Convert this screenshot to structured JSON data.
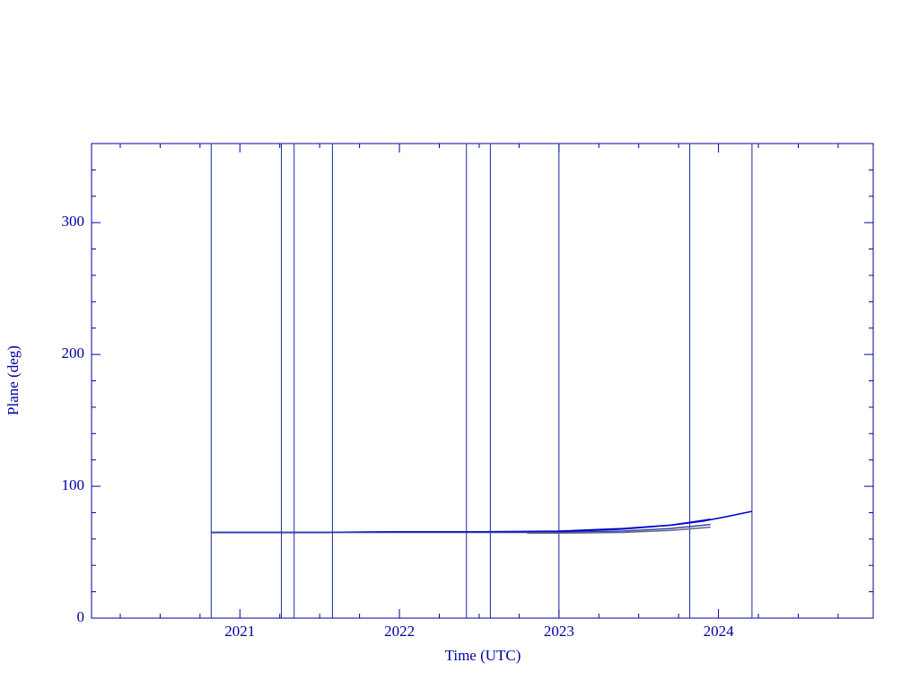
{
  "chart_data": {
    "type": "line",
    "xlabel": "Time (UTC)",
    "ylabel": "Plane (deg)",
    "xlim": [
      2020.07,
      2024.97
    ],
    "ylim": [
      0,
      360
    ],
    "xticks": [
      2021,
      2022,
      2023,
      2024
    ],
    "yticks": [
      0,
      100,
      200,
      300
    ],
    "xminorticks": [
      2020.25,
      2020.5,
      2020.75,
      2021.25,
      2021.5,
      2021.75,
      2022.25,
      2022.5,
      2022.75,
      2023.25,
      2023.5,
      2023.75,
      2024.25,
      2024.5,
      2024.75
    ],
    "yminorticks": [
      20,
      40,
      60,
      80,
      120,
      140,
      160,
      180,
      220,
      240,
      260,
      280,
      320,
      340
    ],
    "axis_color": "#0000a0",
    "event_lines": {
      "color": "#1a2aa0",
      "x": [
        2020.82,
        2021.26,
        2021.34,
        2021.58,
        2022.42,
        2022.57,
        2023.0,
        2023.82,
        2024.21
      ]
    },
    "series": [
      {
        "color": "#0000cc",
        "x": [
          2020.82,
          2021.5,
          2022.0,
          2022.5,
          2023.0,
          2023.4,
          2023.7,
          2023.9,
          2024.05,
          2024.21
        ],
        "values": [
          65,
          65,
          65.5,
          65.5,
          66,
          68,
          70.5,
          73.5,
          77,
          81
        ]
      },
      {
        "color": "#0000cc",
        "x": [
          2020.82,
          2021.5,
          2022.0,
          2022.5,
          2023.0,
          2023.4,
          2023.7,
          2023.95
        ],
        "values": [
          65,
          65,
          65.5,
          65.5,
          65.5,
          67.5,
          70.5,
          75
        ]
      },
      {
        "color": "#3344aa",
        "x": [
          2020.82,
          2021.5,
          2022.0,
          2022.5,
          2023.0,
          2023.4,
          2023.7,
          2023.95
        ],
        "values": [
          65,
          65,
          65,
          65,
          65,
          66,
          68,
          71
        ]
      },
      {
        "color": "#666688",
        "x": [
          2022.8,
          2023.0,
          2023.4,
          2023.7,
          2023.95
        ],
        "values": [
          64.5,
          64.5,
          65,
          66.5,
          69
        ]
      }
    ]
  }
}
